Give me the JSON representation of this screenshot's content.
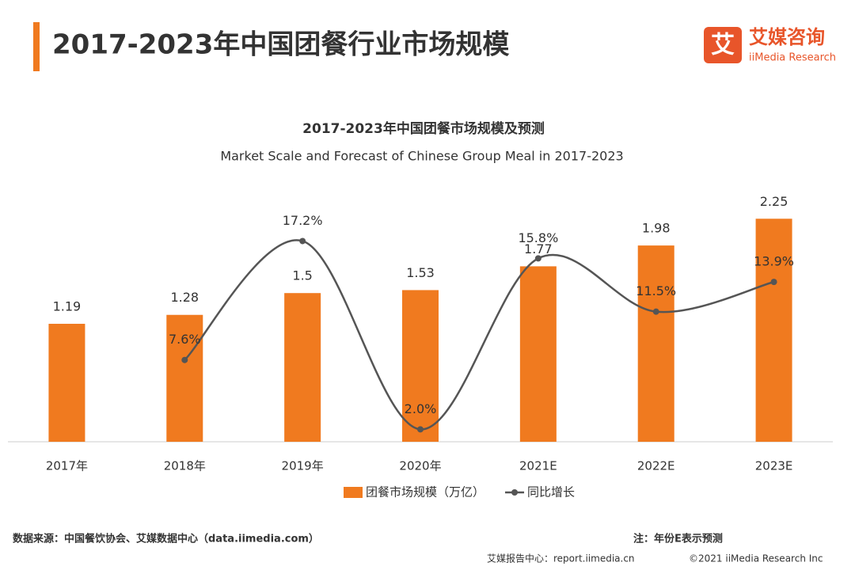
{
  "header": {
    "title": "2017-2023年中国团餐行业市场规模",
    "logo_mark": "艾",
    "logo_name": "艾媒咨询",
    "logo_sub": "iiMedia Research"
  },
  "chart_data": {
    "type": "bar",
    "title": "2017-2023年中国团餐市场规模及预测",
    "subtitle": "Market Scale and Forecast of Chinese Group Meal in 2017-2023",
    "categories": [
      "2017年",
      "2018年",
      "2019年",
      "2020年",
      "2021E",
      "2022E",
      "2023E"
    ],
    "series": [
      {
        "name": "团餐市场规模（万亿）",
        "type": "bar",
        "color": "#f07a1f",
        "values": [
          1.19,
          1.28,
          1.5,
          1.53,
          1.77,
          1.98,
          2.25
        ]
      },
      {
        "name": "同比增长",
        "type": "line",
        "axis": "y2",
        "color": "#555555",
        "values": [
          null,
          7.6,
          17.2,
          2.0,
          15.8,
          11.5,
          13.9
        ],
        "value_labels": [
          null,
          "7.6%",
          "17.2%",
          "2.0%",
          "15.8%",
          "11.5%",
          "13.9%"
        ]
      }
    ],
    "ylim": [
      0,
      2.5
    ],
    "y2lim": [
      1,
      21
    ],
    "legend": "bottom"
  },
  "footer": {
    "source": "数据来源：中国餐饮协会、艾媒数据中心（data.iimedia.com）",
    "note": "注：年份E表示预测",
    "watermark": "艾媒报告中心：report.iimedia.cn",
    "copyright": "©2021  iiMedia Research  Inc"
  }
}
